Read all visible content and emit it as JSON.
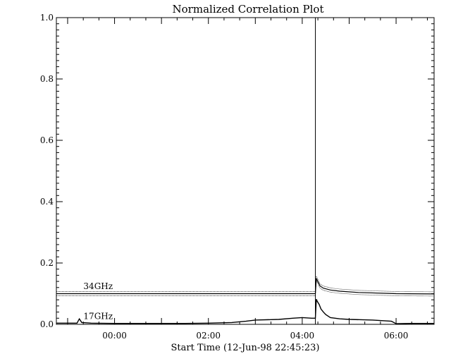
{
  "chart_data": {
    "type": "line",
    "title": "Normalized Correlation Plot",
    "xlabel": "Start Time (12-Jun-98 22:45:23)",
    "ylabel": "",
    "x_unit": "hours relative to 00:00 (13-Jun-98)",
    "xlim": [
      -1.24,
      6.81
    ],
    "ylim": [
      0.0,
      1.0
    ],
    "x_ticks": [
      {
        "value": 0,
        "label": "00:00"
      },
      {
        "value": 2,
        "label": "02:00"
      },
      {
        "value": 4,
        "label": "04:00"
      },
      {
        "value": 6,
        "label": "06:00"
      }
    ],
    "y_ticks": [
      {
        "value": 0.0,
        "label": "0.0"
      },
      {
        "value": 0.2,
        "label": "0.2"
      },
      {
        "value": 0.4,
        "label": "0.4"
      },
      {
        "value": 0.6,
        "label": "0.6"
      },
      {
        "value": 0.8,
        "label": "0.8"
      },
      {
        "value": 1.0,
        "label": "1.0"
      }
    ],
    "annotation": {
      "type": "vertical-line",
      "x": 4.28
    },
    "series": [
      {
        "name": "34GHz",
        "x": [
          -1.24,
          -0.5,
          0.5,
          1.5,
          2.5,
          3.5,
          4.2,
          4.28,
          4.3,
          4.33,
          4.38,
          4.45,
          4.6,
          4.8,
          5.2,
          6.0,
          6.81
        ],
        "y": [
          0.1,
          0.1,
          0.1,
          0.1,
          0.1,
          0.1,
          0.1,
          0.1,
          0.15,
          0.14,
          0.125,
          0.118,
          0.112,
          0.108,
          0.104,
          0.1,
          0.099
        ]
      },
      {
        "name": "17GHz",
        "x": [
          -1.24,
          -0.8,
          -0.75,
          -0.7,
          -0.5,
          0.0,
          0.5,
          1.0,
          1.5,
          2.0,
          2.5,
          2.8,
          3.0,
          3.5,
          3.8,
          4.0,
          4.2,
          4.28,
          4.3,
          4.32,
          4.36,
          4.4,
          4.45,
          4.5,
          4.6,
          4.8,
          5.0,
          5.5,
          5.9,
          6.0,
          6.3,
          6.81
        ],
        "y": [
          0.004,
          0.004,
          0.018,
          0.006,
          0.004,
          0.003,
          0.003,
          0.003,
          0.003,
          0.004,
          0.006,
          0.01,
          0.014,
          0.016,
          0.02,
          0.022,
          0.02,
          0.02,
          0.082,
          0.075,
          0.065,
          0.05,
          0.04,
          0.032,
          0.022,
          0.018,
          0.016,
          0.014,
          0.01,
          0.002,
          0.003,
          0.003
        ]
      }
    ],
    "series_labels": [
      {
        "series": "34GHz",
        "text": "34GHz",
        "x": -0.35,
        "y": 0.115
      },
      {
        "series": "17GHz",
        "text": "17GHz",
        "x": -0.35,
        "y": 0.017
      }
    ]
  }
}
